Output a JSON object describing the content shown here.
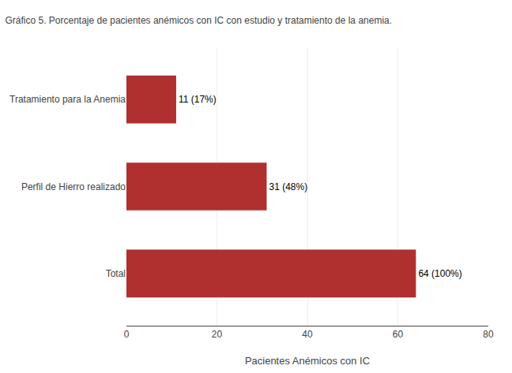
{
  "chart_data": {
    "type": "bar",
    "orientation": "horizontal",
    "title": "Gráfico 5. Porcentaje de pacientes anémicos con IC con estudio y tratamiento de la anemia.",
    "categories": [
      "Total",
      "Perfil de Hierro realizado",
      "Tratamiento para la Anemia"
    ],
    "values": [
      64,
      31,
      11
    ],
    "value_labels": [
      "64 (100%)",
      "31 (48%)",
      "11 (17%)"
    ],
    "data_labels": true,
    "color": "#b03030",
    "xlabel": "Pacientes Anémicos con IC",
    "xlim": [
      0,
      80
    ],
    "xticks": [
      0,
      20,
      40,
      60,
      80
    ],
    "grid": true
  }
}
